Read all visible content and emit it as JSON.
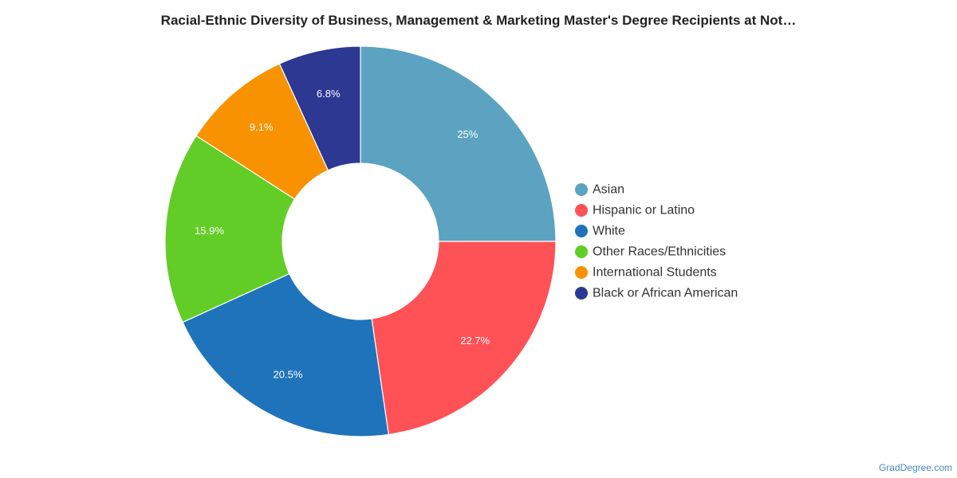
{
  "watermark": "GradDegree.com",
  "chart_data": {
    "type": "pie",
    "title": "Racial-Ethnic Diversity of Business, Management & Marketing Master's Degree Recipients at Not…",
    "donut": true,
    "legend_position": "right",
    "slices": [
      {
        "label": "Asian",
        "value": 25,
        "display": "25%",
        "color": "#5ba3c0"
      },
      {
        "label": "Hispanic or Latino",
        "value": 22.7,
        "display": "22.7%",
        "color": "#ff5256"
      },
      {
        "label": "White",
        "value": 20.5,
        "display": "20.5%",
        "color": "#1f73bb"
      },
      {
        "label": "Other Races/Ethnicities",
        "value": 15.9,
        "display": "15.9%",
        "color": "#62cd26"
      },
      {
        "label": "International Students",
        "value": 9.1,
        "display": "9.1%",
        "color": "#f89200"
      },
      {
        "label": "Black or African American",
        "value": 6.8,
        "display": "6.8%",
        "color": "#2d3893"
      }
    ]
  }
}
